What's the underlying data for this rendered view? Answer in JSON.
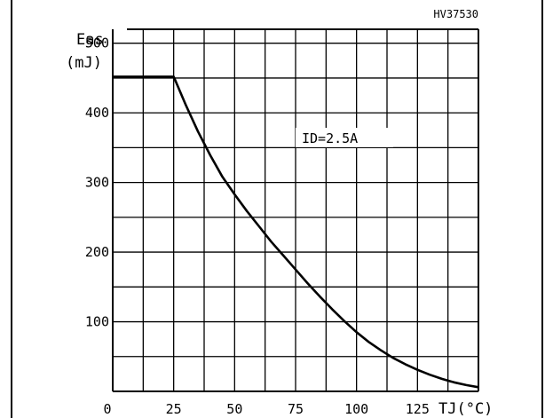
{
  "figure_code": "HV37530",
  "chart_data": {
    "type": "line",
    "title": "",
    "xlabel": "TJ(°C)",
    "ylabel_line1": "Eas",
    "ylabel_line2": "(mJ)",
    "xlim": [
      0,
      150
    ],
    "ylim": [
      0,
      520
    ],
    "x_ticks": [
      0,
      25,
      50,
      75,
      100,
      125
    ],
    "y_ticks": [
      100,
      200,
      300,
      400,
      500
    ],
    "x_minor_step": 12.5,
    "y_minor_step": 50,
    "grid": true,
    "annotation": "ID=2.5A",
    "series": [
      {
        "x": [
          0,
          25,
          30,
          35,
          40,
          45,
          50,
          55,
          60,
          65,
          70,
          75,
          80,
          85,
          90,
          95,
          100,
          105,
          110,
          115,
          120,
          125,
          130,
          135,
          140,
          145,
          150
        ],
        "values": [
          452,
          452,
          411,
          373,
          339,
          308,
          283,
          259,
          237,
          215,
          195,
          175,
          155,
          136,
          118,
          101,
          85,
          71,
          59,
          48,
          39,
          31,
          24,
          18,
          13,
          9,
          6
        ]
      }
    ]
  }
}
